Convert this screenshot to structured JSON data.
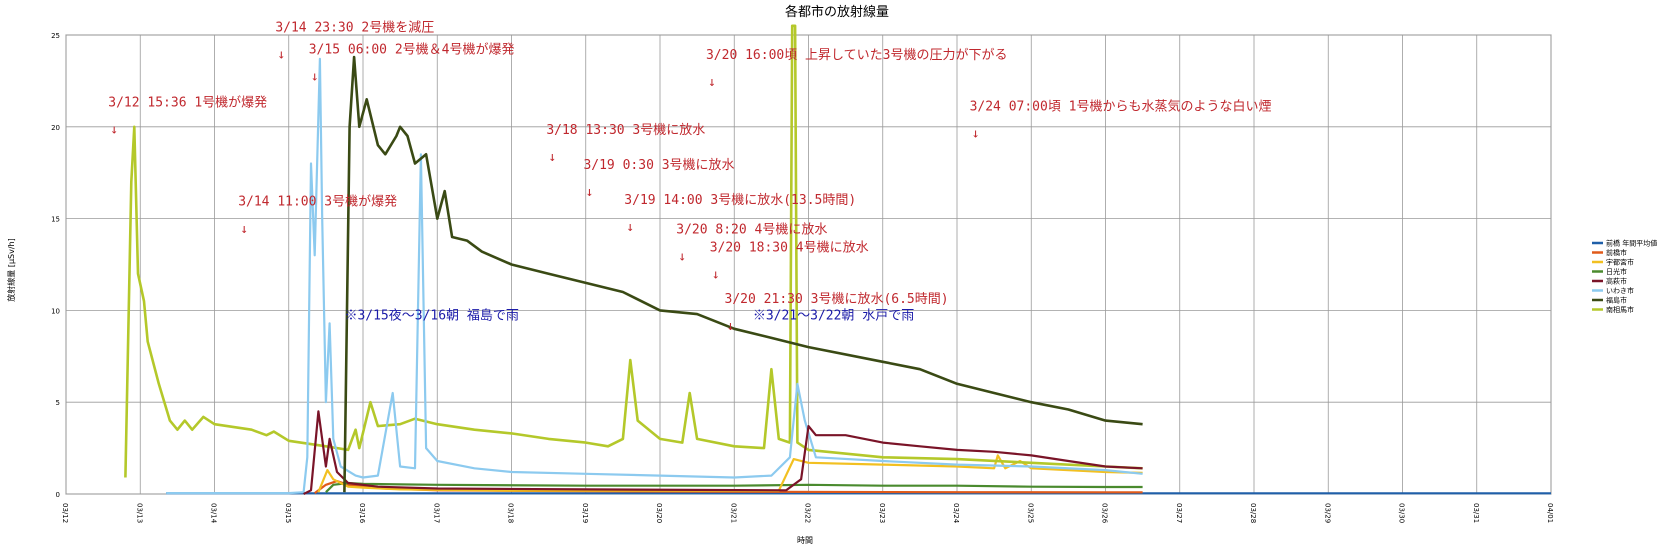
{
  "chart_data": {
    "type": "line",
    "title": "各都市の放射線量",
    "xlabel": "時間",
    "ylabel": "放射線量 [μSv/h]",
    "ylim": [
      0,
      25
    ],
    "yticks": [
      0,
      5,
      10,
      15,
      20,
      25
    ],
    "xlim": [
      0,
      20
    ],
    "x_tick_labels": [
      "03/12",
      "03/13",
      "03/14",
      "03/15",
      "03/16",
      "03/17",
      "03/18",
      "03/19",
      "03/20",
      "03/21",
      "03/22",
      "03/23",
      "03/24",
      "03/25",
      "03/26",
      "03/27",
      "03/28",
      "03/29",
      "03/30",
      "03/31",
      "04/01"
    ],
    "grid": true,
    "legend_position": "right",
    "series": [
      {
        "name": "前橋 年間平均値",
        "color": "#1f5fa8",
        "points": [
          [
            1.35,
            0.04
          ],
          [
            20,
            0.04
          ]
        ]
      },
      {
        "name": "前橋市",
        "color": "#e05a1a",
        "points": [
          [
            3.35,
            0.05
          ],
          [
            3.5,
            0.5
          ],
          [
            3.65,
            0.7
          ],
          [
            3.8,
            0.5
          ],
          [
            4.0,
            0.4
          ],
          [
            4.3,
            0.3
          ],
          [
            5,
            0.2
          ],
          [
            7,
            0.15
          ],
          [
            9.5,
            0.12
          ],
          [
            12,
            0.1
          ],
          [
            14,
            0.09
          ],
          [
            14.5,
            0.09
          ]
        ]
      },
      {
        "name": "宇都宮市",
        "color": "#f2c021",
        "points": [
          [
            3.4,
            0.1
          ],
          [
            3.52,
            1.3
          ],
          [
            3.6,
            0.8
          ],
          [
            3.8,
            0.4
          ],
          [
            4,
            0.35
          ],
          [
            4.5,
            0.25
          ],
          [
            6,
            0.18
          ],
          [
            9.6,
            0.18
          ],
          [
            9.8,
            1.9
          ],
          [
            10,
            1.7
          ],
          [
            11,
            1.6
          ],
          [
            12,
            1.5
          ],
          [
            12.5,
            1.4
          ],
          [
            12.55,
            2.1
          ],
          [
            12.65,
            1.4
          ],
          [
            12.85,
            1.8
          ],
          [
            13,
            1.4
          ],
          [
            14,
            1.2
          ],
          [
            14.5,
            1.15
          ]
        ]
      },
      {
        "name": "日光市",
        "color": "#4a8a2e",
        "points": [
          [
            3.5,
            0.1
          ],
          [
            3.6,
            0.5
          ],
          [
            3.8,
            0.6
          ],
          [
            4,
            0.55
          ],
          [
            5,
            0.5
          ],
          [
            7,
            0.45
          ],
          [
            9,
            0.45
          ],
          [
            10,
            0.5
          ],
          [
            11,
            0.45
          ],
          [
            12,
            0.45
          ],
          [
            13,
            0.4
          ],
          [
            14,
            0.38
          ],
          [
            14.5,
            0.38
          ]
        ]
      },
      {
        "name": "高萩市",
        "color": "#7a1428",
        "points": [
          [
            3.2,
            0
          ],
          [
            3.3,
            0.2
          ],
          [
            3.4,
            4.5
          ],
          [
            3.5,
            1.5
          ],
          [
            3.55,
            3.0
          ],
          [
            3.65,
            1.2
          ],
          [
            3.8,
            0.6
          ],
          [
            4.2,
            0.4
          ],
          [
            5,
            0.3
          ],
          [
            7,
            0.25
          ],
          [
            9.7,
            0.2
          ],
          [
            9.9,
            0.8
          ],
          [
            10.0,
            3.7
          ],
          [
            10.1,
            3.2
          ],
          [
            10.5,
            3.2
          ],
          [
            11,
            2.8
          ],
          [
            11.5,
            2.6
          ],
          [
            12,
            2.4
          ],
          [
            12.5,
            2.3
          ],
          [
            13,
            2.1
          ],
          [
            13.5,
            1.8
          ],
          [
            14,
            1.5
          ],
          [
            14.5,
            1.4
          ]
        ]
      },
      {
        "name": "いわき市",
        "color": "#8ccaef",
        "points": [
          [
            1.35,
            0.05
          ],
          [
            3.0,
            0.05
          ],
          [
            3.2,
            0.1
          ],
          [
            3.25,
            2
          ],
          [
            3.3,
            18
          ],
          [
            3.35,
            13
          ],
          [
            3.42,
            23.7
          ],
          [
            3.45,
            15
          ],
          [
            3.5,
            5
          ],
          [
            3.55,
            9.3
          ],
          [
            3.6,
            3
          ],
          [
            3.7,
            1.5
          ],
          [
            3.9,
            1.0
          ],
          [
            4.0,
            0.9
          ],
          [
            4.2,
            1.0
          ],
          [
            4.4,
            5.5
          ],
          [
            4.5,
            1.5
          ],
          [
            4.7,
            1.4
          ],
          [
            4.78,
            18.5
          ],
          [
            4.85,
            2.5
          ],
          [
            5.0,
            1.8
          ],
          [
            5.5,
            1.4
          ],
          [
            6,
            1.2
          ],
          [
            7,
            1.1
          ],
          [
            8,
            1.0
          ],
          [
            9,
            0.9
          ],
          [
            9.5,
            1.0
          ],
          [
            9.75,
            2
          ],
          [
            9.85,
            6
          ],
          [
            9.95,
            4
          ],
          [
            10.1,
            2.0
          ],
          [
            11,
            1.8
          ],
          [
            12,
            1.6
          ],
          [
            13,
            1.5
          ],
          [
            14,
            1.3
          ],
          [
            14.5,
            1.1
          ]
        ]
      },
      {
        "name": "福島市",
        "color": "#3a4a14",
        "points": [
          [
            3.75,
            0.1
          ],
          [
            3.82,
            20
          ],
          [
            3.88,
            23.8
          ],
          [
            3.95,
            20
          ],
          [
            4.05,
            21.5
          ],
          [
            4.2,
            19
          ],
          [
            4.3,
            18.5
          ],
          [
            4.45,
            19.5
          ],
          [
            4.5,
            20
          ],
          [
            4.6,
            19.5
          ],
          [
            4.7,
            18.0
          ],
          [
            4.85,
            18.5
          ],
          [
            5.0,
            15
          ],
          [
            5.1,
            16.5
          ],
          [
            5.2,
            14
          ],
          [
            5.4,
            13.8
          ],
          [
            5.6,
            13.2
          ],
          [
            6,
            12.5
          ],
          [
            6.5,
            12
          ],
          [
            7,
            11.5
          ],
          [
            7.5,
            11
          ],
          [
            8,
            10
          ],
          [
            8.5,
            9.8
          ],
          [
            9,
            9
          ],
          [
            9.5,
            8.5
          ],
          [
            10,
            8.0
          ],
          [
            11,
            7.2
          ],
          [
            11.5,
            6.8
          ],
          [
            12,
            6.0
          ],
          [
            12.5,
            5.5
          ],
          [
            13,
            5.0
          ],
          [
            13.5,
            4.6
          ],
          [
            14,
            4.0
          ],
          [
            14.5,
            3.8
          ]
        ]
      },
      {
        "name": "南相馬市",
        "color": "#b4c82a",
        "points": [
          [
            0.8,
            0.9
          ],
          [
            0.88,
            17
          ],
          [
            0.92,
            20
          ],
          [
            0.97,
            12
          ],
          [
            1.05,
            10.5
          ],
          [
            1.1,
            8.3
          ],
          [
            1.25,
            6
          ],
          [
            1.4,
            4.0
          ],
          [
            1.5,
            3.5
          ],
          [
            1.6,
            4.0
          ],
          [
            1.7,
            3.5
          ],
          [
            1.85,
            4.2
          ],
          [
            2.0,
            3.8
          ],
          [
            2.5,
            3.5
          ],
          [
            2.7,
            3.2
          ],
          [
            2.8,
            3.4
          ],
          [
            3.0,
            2.9
          ],
          [
            3.5,
            2.6
          ],
          [
            3.8,
            2.4
          ],
          [
            3.9,
            3.5
          ],
          [
            3.95,
            2.5
          ],
          [
            4.1,
            5
          ],
          [
            4.2,
            3.7
          ],
          [
            4.5,
            3.8
          ],
          [
            4.7,
            4.1
          ],
          [
            5,
            3.8
          ],
          [
            5.5,
            3.5
          ],
          [
            6,
            3.3
          ],
          [
            6.5,
            3.0
          ],
          [
            7,
            2.8
          ],
          [
            7.3,
            2.6
          ],
          [
            7.5,
            3.0
          ],
          [
            7.6,
            7.3
          ],
          [
            7.7,
            4
          ],
          [
            8,
            3.0
          ],
          [
            8.3,
            2.8
          ],
          [
            8.4,
            5.5
          ],
          [
            8.5,
            3.0
          ],
          [
            9,
            2.6
          ],
          [
            9.4,
            2.5
          ],
          [
            9.5,
            6.8
          ],
          [
            9.6,
            3
          ],
          [
            9.75,
            2.8
          ],
          [
            9.78,
            25.5
          ],
          [
            9.82,
            25.5
          ],
          [
            9.85,
            2.8
          ],
          [
            10,
            2.4
          ],
          [
            11,
            2.0
          ],
          [
            12,
            1.9
          ],
          [
            13,
            1.7
          ],
          [
            14,
            1.5
          ],
          [
            14.5,
            1.4
          ]
        ]
      }
    ],
    "annotations": [
      {
        "text": "3/12 15:36 1号機が爆発",
        "x": 0.65,
        "y": 21.1,
        "arrow_x": 0.65,
        "arrow_y": 20.5
      },
      {
        "text": "3/14 23:30 2号機を減圧",
        "x": 2.9,
        "y": 25.2,
        "arrow_x": 2.9,
        "arrow_y": 24.6
      },
      {
        "text": "3/15 06:00 2号機＆4号機が爆発",
        "x": 3.35,
        "y": 24.0,
        "arrow_x": 3.35,
        "arrow_y": 23.4
      },
      {
        "text": "3/14 11:00 3号機が爆発",
        "x": 2.4,
        "y": 15.7,
        "arrow_x": 2.4,
        "arrow_y": 15.1
      },
      {
        "text": "3/18 13:30 3号機に放水",
        "x": 6.55,
        "y": 19.6,
        "arrow_x": 6.55,
        "arrow_y": 19.0
      },
      {
        "text": "3/19 0:30 3号機に放水",
        "x": 7.05,
        "y": 17.7,
        "arrow_x": 7.05,
        "arrow_y": 17.1
      },
      {
        "text": "3/19 14:00 3号機に放水(13.5時間)",
        "x": 7.6,
        "y": 15.8,
        "arrow_x": 7.6,
        "arrow_y": 15.2
      },
      {
        "text": "3/20 8:20 4号機に放水",
        "x": 8.3,
        "y": 14.2,
        "arrow_x": 8.3,
        "arrow_y": 13.6
      },
      {
        "text": "3/20 16:00頃 上昇していた3号機の圧力が下がる",
        "x": 8.7,
        "y": 23.7,
        "arrow_x": 8.7,
        "arrow_y": 23.1
      },
      {
        "text": "3/20 18:30 4号機に放水",
        "x": 8.75,
        "y": 13.2,
        "arrow_x": 8.75,
        "arrow_y": 12.6
      },
      {
        "text": "3/20 21:30 3号機に放水(6.5時間)",
        "x": 8.95,
        "y": 10.4,
        "arrow_x": 8.95,
        "arrow_y": 9.8
      },
      {
        "text": "3/24 07:00頃 1号機からも水蒸気のような白い煙",
        "x": 12.25,
        "y": 20.9,
        "arrow_x": 12.25,
        "arrow_y": 20.3
      }
    ],
    "notes": [
      {
        "text": "※3/15夜〜3/16朝 福島で雨",
        "x": 3.75,
        "y": 9.5
      },
      {
        "text": "※3/21〜3/22朝 水戸で雨",
        "x": 9.25,
        "y": 9.5
      }
    ]
  }
}
